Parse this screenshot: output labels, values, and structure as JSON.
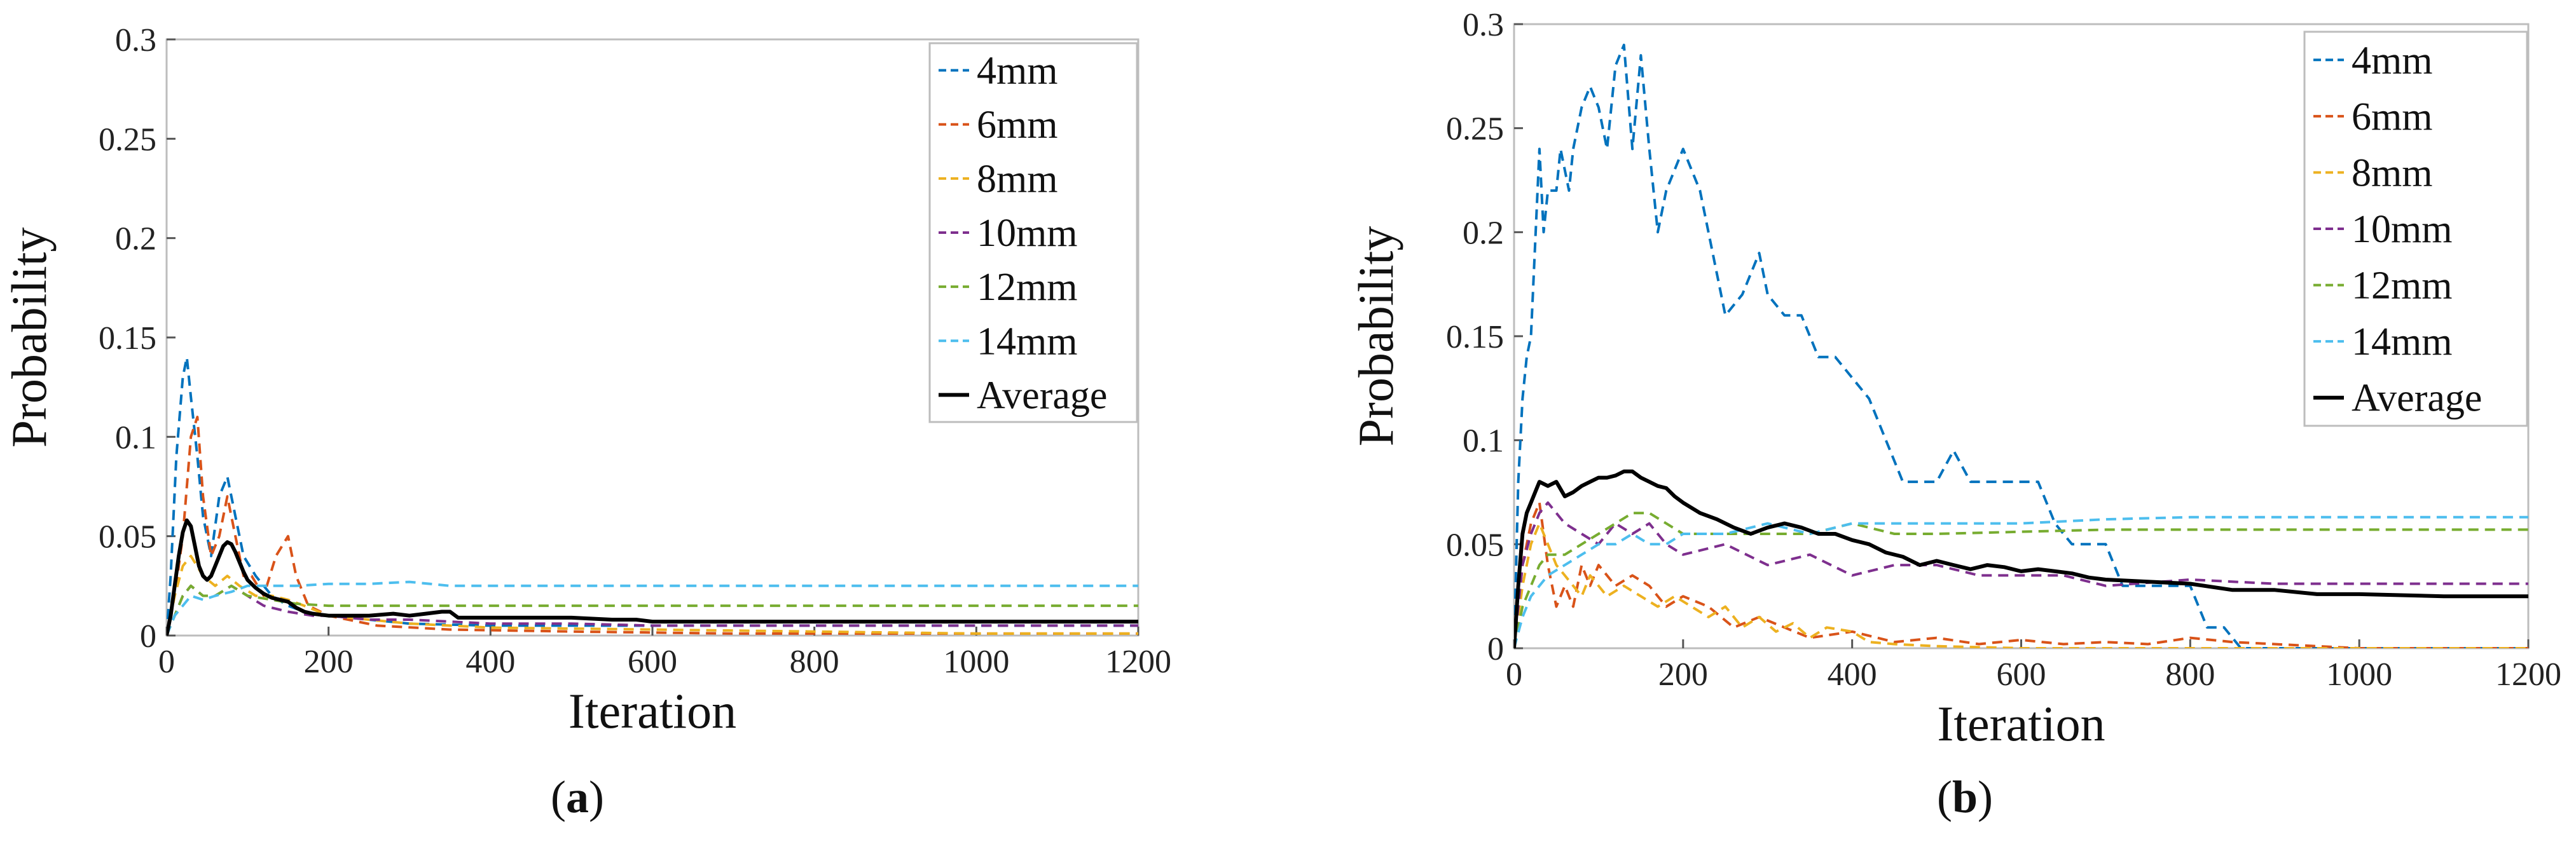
{
  "chart_data": [
    {
      "id": "a",
      "type": "line",
      "caption": "(a)",
      "caption_letter": "a",
      "xlabel": "Iteration",
      "ylabel": "Probability",
      "xlim": [
        0,
        1200
      ],
      "ylim": [
        0,
        0.3
      ],
      "xticks": [
        0,
        200,
        400,
        600,
        800,
        1000,
        1200
      ],
      "yticks": [
        0,
        0.05,
        0.1,
        0.15,
        0.2,
        0.25,
        0.3
      ],
      "ytick_labels": [
        "0",
        "0.05",
        "0.1",
        "0.15",
        "0.2",
        "0.25",
        "0.3"
      ],
      "legend_position": "top-right",
      "series": [
        {
          "name": "4mm",
          "color": "#0072BD",
          "dashed": true,
          "x": [
            0,
            5,
            12,
            20,
            25,
            30,
            38,
            45,
            55,
            65,
            75,
            85,
            95,
            110,
            130,
            150,
            170,
            200,
            250,
            300,
            400,
            600,
            800,
            1000,
            1200
          ],
          "y": [
            0,
            0.03,
            0.09,
            0.13,
            0.14,
            0.12,
            0.09,
            0.06,
            0.04,
            0.07,
            0.08,
            0.06,
            0.04,
            0.03,
            0.02,
            0.015,
            0.012,
            0.01,
            0.008,
            0.006,
            0.005,
            0.005,
            0.005,
            0.005,
            0.005
          ]
        },
        {
          "name": "6mm",
          "color": "#D95319",
          "dashed": true,
          "x": [
            0,
            10,
            20,
            30,
            38,
            45,
            55,
            65,
            75,
            85,
            95,
            105,
            120,
            135,
            150,
            160,
            175,
            200,
            260,
            350,
            500,
            700,
            1000,
            1200
          ],
          "y": [
            0,
            0.02,
            0.05,
            0.1,
            0.11,
            0.07,
            0.04,
            0.05,
            0.07,
            0.05,
            0.03,
            0.03,
            0.02,
            0.04,
            0.05,
            0.03,
            0.015,
            0.01,
            0.005,
            0.003,
            0.002,
            0.001,
            0.001,
            0.001
          ]
        },
        {
          "name": "8mm",
          "color": "#EDB120",
          "dashed": true,
          "x": [
            0,
            10,
            20,
            30,
            45,
            60,
            75,
            90,
            110,
            130,
            150,
            170,
            200,
            250,
            300,
            400,
            600,
            800,
            1000,
            1200
          ],
          "y": [
            0,
            0.02,
            0.035,
            0.04,
            0.03,
            0.025,
            0.03,
            0.025,
            0.02,
            0.02,
            0.018,
            0.015,
            0.01,
            0.008,
            0.006,
            0.004,
            0.003,
            0.002,
            0.001,
            0.001
          ]
        },
        {
          "name": "10mm",
          "color": "#7E2F8E",
          "dashed": true,
          "x": [
            0,
            10,
            20,
            30,
            45,
            60,
            80,
            100,
            120,
            150,
            180,
            200,
            250,
            300,
            350,
            400,
            500,
            600,
            800,
            1000,
            1200
          ],
          "y": [
            0,
            0.01,
            0.02,
            0.025,
            0.02,
            0.02,
            0.025,
            0.02,
            0.015,
            0.012,
            0.01,
            0.01,
            0.008,
            0.008,
            0.007,
            0.006,
            0.006,
            0.005,
            0.005,
            0.005,
            0.005
          ]
        },
        {
          "name": "12mm",
          "color": "#77AC30",
          "dashed": true,
          "x": [
            0,
            10,
            20,
            30,
            45,
            60,
            80,
            100,
            130,
            160,
            200,
            250,
            300,
            350,
            400,
            600,
            800,
            1000,
            1200
          ],
          "y": [
            0,
            0.01,
            0.02,
            0.025,
            0.02,
            0.02,
            0.025,
            0.02,
            0.018,
            0.016,
            0.015,
            0.015,
            0.015,
            0.015,
            0.015,
            0.015,
            0.015,
            0.015,
            0.015
          ]
        },
        {
          "name": "14mm",
          "color": "#4DBEEE",
          "dashed": true,
          "x": [
            0,
            10,
            20,
            30,
            45,
            60,
            80,
            100,
            130,
            160,
            200,
            250,
            300,
            350,
            400,
            600,
            800,
            1000,
            1200
          ],
          "y": [
            0,
            0.01,
            0.015,
            0.02,
            0.018,
            0.02,
            0.022,
            0.025,
            0.025,
            0.025,
            0.026,
            0.026,
            0.027,
            0.025,
            0.025,
            0.025,
            0.025,
            0.025,
            0.025
          ]
        },
        {
          "name": "Average",
          "color": "#000000",
          "dashed": false,
          "x": [
            0,
            5,
            10,
            15,
            20,
            25,
            30,
            35,
            40,
            45,
            50,
            55,
            60,
            65,
            70,
            75,
            80,
            85,
            90,
            95,
            100,
            110,
            120,
            130,
            140,
            150,
            160,
            170,
            180,
            200,
            220,
            250,
            280,
            300,
            320,
            340,
            350,
            360,
            400,
            450,
            500,
            550,
            580,
            600,
            700,
            800,
            900,
            1000,
            1100,
            1200
          ],
          "y": [
            0,
            0.01,
            0.025,
            0.04,
            0.052,
            0.058,
            0.055,
            0.045,
            0.035,
            0.03,
            0.028,
            0.03,
            0.035,
            0.04,
            0.045,
            0.047,
            0.046,
            0.042,
            0.037,
            0.032,
            0.028,
            0.024,
            0.021,
            0.019,
            0.018,
            0.017,
            0.014,
            0.012,
            0.011,
            0.01,
            0.01,
            0.01,
            0.011,
            0.01,
            0.011,
            0.012,
            0.012,
            0.009,
            0.009,
            0.009,
            0.009,
            0.008,
            0.008,
            0.007,
            0.007,
            0.007,
            0.007,
            0.007,
            0.007,
            0.007
          ]
        }
      ]
    },
    {
      "id": "b",
      "type": "line",
      "caption": "(b)",
      "caption_letter": "b",
      "xlabel": "Iteration",
      "ylabel": "Probability",
      "xlim": [
        0,
        1200
      ],
      "ylim": [
        0,
        0.3
      ],
      "xticks": [
        0,
        200,
        400,
        600,
        800,
        1000,
        1200
      ],
      "yticks": [
        0,
        0.05,
        0.1,
        0.15,
        0.2,
        0.25,
        0.3
      ],
      "ytick_labels": [
        "0",
        "0.05",
        "0.1",
        "0.15",
        "0.2",
        "0.25",
        "0.3"
      ],
      "legend_position": "top-right",
      "series": [
        {
          "name": "4mm",
          "color": "#0072BD",
          "dashed": true,
          "x": [
            0,
            5,
            10,
            15,
            20,
            30,
            35,
            40,
            50,
            55,
            65,
            70,
            80,
            90,
            100,
            110,
            120,
            130,
            140,
            150,
            160,
            170,
            180,
            200,
            220,
            240,
            250,
            270,
            280,
            290,
            300,
            320,
            340,
            360,
            380,
            400,
            420,
            440,
            460,
            480,
            500,
            520,
            540,
            560,
            580,
            600,
            620,
            640,
            660,
            680,
            700,
            720,
            740,
            760,
            780,
            800,
            820,
            840,
            860,
            870,
            900,
            1000,
            1100,
            1200
          ],
          "y": [
            0,
            0.08,
            0.12,
            0.14,
            0.15,
            0.24,
            0.2,
            0.22,
            0.22,
            0.24,
            0.22,
            0.24,
            0.26,
            0.27,
            0.26,
            0.24,
            0.28,
            0.29,
            0.24,
            0.285,
            0.24,
            0.2,
            0.22,
            0.24,
            0.22,
            0.18,
            0.16,
            0.17,
            0.18,
            0.19,
            0.17,
            0.16,
            0.16,
            0.14,
            0.14,
            0.13,
            0.12,
            0.1,
            0.08,
            0.08,
            0.08,
            0.095,
            0.08,
            0.08,
            0.08,
            0.08,
            0.08,
            0.06,
            0.05,
            0.05,
            0.05,
            0.03,
            0.03,
            0.03,
            0.03,
            0.03,
            0.01,
            0.01,
            0,
            0,
            0,
            0,
            0,
            0
          ]
        },
        {
          "name": "6mm",
          "color": "#D95319",
          "dashed": true,
          "x": [
            0,
            10,
            20,
            30,
            40,
            50,
            60,
            70,
            80,
            90,
            100,
            120,
            140,
            160,
            180,
            200,
            230,
            260,
            290,
            320,
            350,
            400,
            450,
            500,
            550,
            600,
            650,
            700,
            750,
            800,
            850,
            900,
            950,
            1000,
            1100,
            1200
          ],
          "y": [
            0,
            0.04,
            0.06,
            0.07,
            0.04,
            0.02,
            0.03,
            0.02,
            0.04,
            0.03,
            0.04,
            0.03,
            0.035,
            0.03,
            0.02,
            0.025,
            0.02,
            0.01,
            0.015,
            0.01,
            0.005,
            0.008,
            0.003,
            0.005,
            0.002,
            0.004,
            0.002,
            0.003,
            0.002,
            0.005,
            0.003,
            0.002,
            0.001,
            0,
            0,
            0
          ]
        },
        {
          "name": "8mm",
          "color": "#EDB120",
          "dashed": true,
          "x": [
            0,
            10,
            20,
            30,
            40,
            50,
            60,
            70,
            80,
            90,
            100,
            110,
            130,
            150,
            170,
            190,
            210,
            230,
            250,
            270,
            290,
            310,
            330,
            350,
            370,
            400,
            420,
            450,
            500,
            600,
            700,
            800,
            1000,
            1200
          ],
          "y": [
            0,
            0.03,
            0.05,
            0.06,
            0.05,
            0.04,
            0.035,
            0.03,
            0.025,
            0.035,
            0.03,
            0.025,
            0.03,
            0.025,
            0.02,
            0.025,
            0.02,
            0.015,
            0.02,
            0.01,
            0.015,
            0.008,
            0.012,
            0.005,
            0.01,
            0.008,
            0.003,
            0.002,
            0.001,
            0,
            0,
            0,
            0,
            0
          ]
        },
        {
          "name": "10mm",
          "color": "#7E2F8E",
          "dashed": true,
          "x": [
            0,
            10,
            20,
            30,
            40,
            60,
            80,
            100,
            120,
            140,
            160,
            180,
            200,
            250,
            300,
            350,
            400,
            450,
            500,
            550,
            600,
            650,
            700,
            800,
            900,
            1000,
            1100,
            1200
          ],
          "y": [
            0,
            0.04,
            0.055,
            0.065,
            0.07,
            0.06,
            0.055,
            0.05,
            0.06,
            0.055,
            0.06,
            0.05,
            0.045,
            0.05,
            0.04,
            0.045,
            0.035,
            0.04,
            0.04,
            0.035,
            0.035,
            0.035,
            0.03,
            0.033,
            0.031,
            0.031,
            0.031,
            0.031
          ]
        },
        {
          "name": "12mm",
          "color": "#77AC30",
          "dashed": true,
          "x": [
            0,
            10,
            20,
            30,
            40,
            60,
            80,
            100,
            120,
            140,
            160,
            180,
            200,
            250,
            300,
            350,
            400,
            450,
            500,
            600,
            700,
            800,
            900,
            1000,
            1100,
            1200
          ],
          "y": [
            0,
            0.02,
            0.03,
            0.04,
            0.045,
            0.045,
            0.05,
            0.055,
            0.06,
            0.065,
            0.065,
            0.06,
            0.055,
            0.055,
            0.055,
            0.055,
            0.06,
            0.055,
            0.055,
            0.056,
            0.057,
            0.057,
            0.057,
            0.057,
            0.057,
            0.057
          ]
        },
        {
          "name": "14mm",
          "color": "#4DBEEE",
          "dashed": true,
          "x": [
            0,
            10,
            20,
            30,
            40,
            60,
            80,
            100,
            120,
            140,
            160,
            180,
            200,
            250,
            300,
            350,
            400,
            450,
            500,
            600,
            700,
            800,
            900,
            1000,
            1100,
            1200
          ],
          "y": [
            0,
            0.015,
            0.025,
            0.03,
            0.035,
            0.04,
            0.045,
            0.05,
            0.05,
            0.055,
            0.05,
            0.05,
            0.055,
            0.055,
            0.06,
            0.055,
            0.06,
            0.06,
            0.06,
            0.06,
            0.062,
            0.063,
            0.063,
            0.063,
            0.063,
            0.063
          ]
        },
        {
          "name": "Average",
          "color": "#000000",
          "dashed": false,
          "x": [
            0,
            5,
            10,
            15,
            20,
            25,
            30,
            40,
            50,
            60,
            70,
            80,
            90,
            100,
            110,
            120,
            130,
            140,
            150,
            160,
            170,
            180,
            190,
            200,
            220,
            240,
            260,
            280,
            300,
            320,
            340,
            360,
            380,
            400,
            420,
            440,
            460,
            480,
            500,
            520,
            540,
            560,
            580,
            600,
            620,
            640,
            660,
            680,
            700,
            750,
            800,
            850,
            900,
            950,
            1000,
            1100,
            1200
          ],
          "y": [
            0,
            0.03,
            0.055,
            0.065,
            0.07,
            0.075,
            0.08,
            0.078,
            0.08,
            0.073,
            0.075,
            0.078,
            0.08,
            0.082,
            0.082,
            0.083,
            0.085,
            0.085,
            0.082,
            0.08,
            0.078,
            0.077,
            0.073,
            0.07,
            0.065,
            0.062,
            0.058,
            0.055,
            0.058,
            0.06,
            0.058,
            0.055,
            0.055,
            0.052,
            0.05,
            0.046,
            0.044,
            0.04,
            0.042,
            0.04,
            0.038,
            0.04,
            0.039,
            0.037,
            0.038,
            0.037,
            0.036,
            0.034,
            0.033,
            0.032,
            0.031,
            0.028,
            0.028,
            0.026,
            0.026,
            0.025,
            0.025
          ]
        }
      ]
    }
  ]
}
